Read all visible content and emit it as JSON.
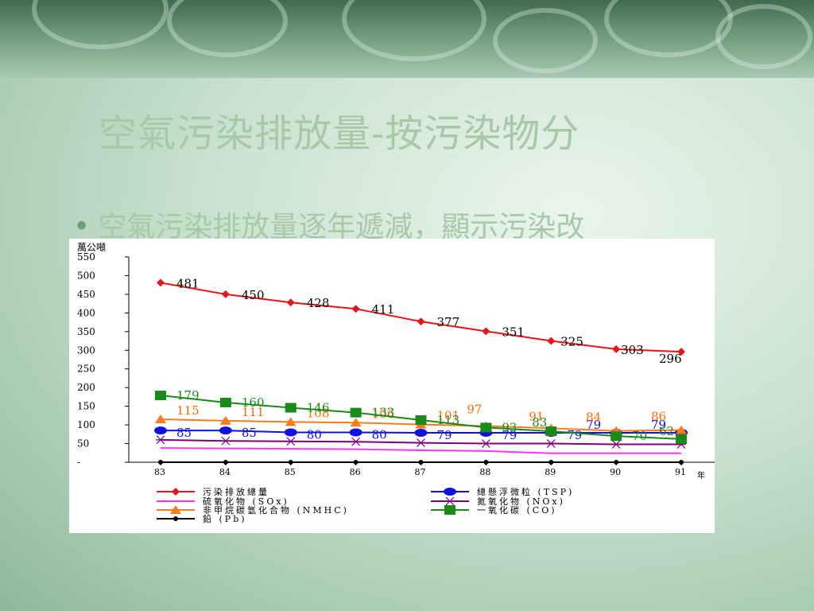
{
  "slide": {
    "title": "空氣污染排放量-按污染物分",
    "bullet": "空氣污染排放量逐年遞減，顯示污染改"
  },
  "chart_data": {
    "type": "line",
    "ylabel": "萬公噸",
    "xunit": "年",
    "x": [
      "83",
      "84",
      "85",
      "86",
      "87",
      "88",
      "89",
      "90",
      "91"
    ],
    "y_ticks": [
      "550",
      "500",
      "450",
      "400",
      "350",
      "300",
      "250",
      "200",
      "150",
      "100",
      "50",
      "-"
    ],
    "ylim": [
      0,
      550
    ],
    "grid": false,
    "legend_placement": "bottom",
    "series": [
      {
        "name": "污染排放總量",
        "color": "#e8151b",
        "marker": "diamond",
        "label_color": "#000000",
        "values": [
          481,
          450,
          428,
          411,
          377,
          351,
          325,
          303,
          296
        ],
        "labels": [
          "481",
          "450",
          "428",
          "411",
          "377",
          "351",
          "325",
          "303",
          "296"
        ]
      },
      {
        "name": "總懸浮微粒 (TSP)",
        "color": "#1010e0",
        "marker": "circle",
        "label_color": "#1010e0",
        "values": [
          85,
          85,
          80,
          80,
          79,
          79,
          79,
          79,
          79
        ],
        "labels": [
          "85",
          "85",
          "80",
          "80",
          "79",
          "79",
          "79",
          "79",
          "79"
        ]
      },
      {
        "name": "硫氧化物 (SOx)",
        "color": "#ff33ff",
        "marker": "none",
        "label_color": "#ff33ff",
        "values": [
          38,
          37,
          36,
          35,
          32,
          30,
          24,
          24,
          24
        ],
        "labels": []
      },
      {
        "name": "氮氧化物 (NOx)",
        "color": "#800080",
        "marker": "star",
        "label_color": "#800080",
        "values": [
          60,
          57,
          56,
          55,
          52,
          50,
          50,
          48,
          48
        ],
        "labels": []
      },
      {
        "name": "非甲烷碳氫化合物 (NMHC)",
        "color": "#ff7a1a",
        "marker": "triangle",
        "label_color": "#ff6a00",
        "values": [
          115,
          111,
          108,
          106,
          101,
          97,
          91,
          84,
          86
        ],
        "labels": [
          "115",
          "111",
          "108",
          "106",
          "101",
          "97",
          "91",
          "84",
          "86"
        ]
      },
      {
        "name": "一氧化碳 (CO)",
        "color": "#1a8a1a",
        "marker": "square",
        "label_color": "#1a8a1a",
        "values": [
          179,
          160,
          146,
          133,
          113,
          93,
          83,
          70,
          62
        ],
        "labels": [
          "179",
          "160",
          "146",
          "133",
          "113",
          "93",
          "83",
          "70",
          "62"
        ]
      },
      {
        "name": "鉛 (Pb)",
        "color": "#000000",
        "marker": "dot",
        "label_color": "#000000",
        "values": [
          0,
          0,
          0,
          0,
          0,
          0,
          0,
          0,
          0
        ],
        "labels": []
      }
    ]
  }
}
